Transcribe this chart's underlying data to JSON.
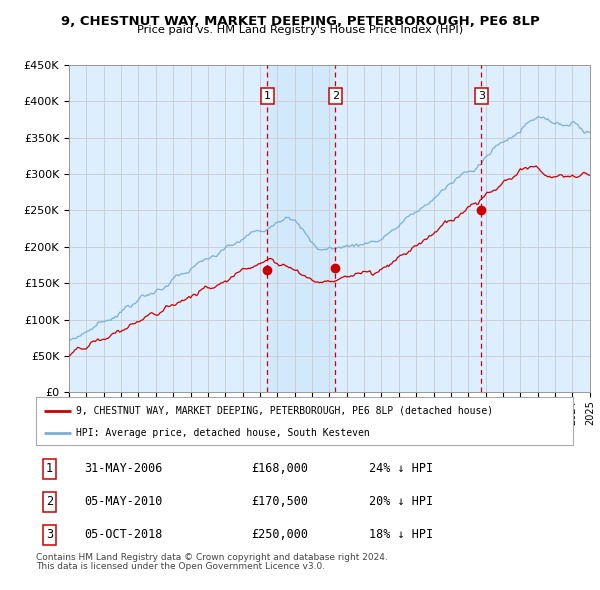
{
  "title": "9, CHESTNUT WAY, MARKET DEEPING, PETERBOROUGH, PE6 8LP",
  "subtitle": "Price paid vs. HM Land Registry's House Price Index (HPI)",
  "ylim": [
    0,
    450000
  ],
  "yticks": [
    0,
    50000,
    100000,
    150000,
    200000,
    250000,
    300000,
    350000,
    400000,
    450000
  ],
  "ytick_labels": [
    "£0",
    "£50K",
    "£100K",
    "£150K",
    "£200K",
    "£250K",
    "£300K",
    "£350K",
    "£400K",
    "£450K"
  ],
  "xstart_year": 1995,
  "xend_year": 2025,
  "hpi_color": "#7bafd4",
  "price_color": "#cc0000",
  "marker_color": "#cc0000",
  "vline_color": "#cc0000",
  "bg_color": "#ddeeff",
  "shade_color": "#cce0f0",
  "grid_color": "#cccccc",
  "transactions": [
    {
      "label": "1",
      "date_num": 2006.42,
      "price": 168000
    },
    {
      "label": "2",
      "date_num": 2010.34,
      "price": 170500
    },
    {
      "label": "3",
      "date_num": 2018.76,
      "price": 250000
    }
  ],
  "legend_line1": "9, CHESTNUT WAY, MARKET DEEPING, PETERBOROUGH, PE6 8LP (detached house)",
  "legend_line2": "HPI: Average price, detached house, South Kesteven",
  "table": [
    {
      "num": "1",
      "date": "31-MAY-2006",
      "price": "£168,000",
      "pct": "24% ↓ HPI"
    },
    {
      "num": "2",
      "date": "05-MAY-2010",
      "price": "£170,500",
      "pct": "20% ↓ HPI"
    },
    {
      "num": "3",
      "date": "05-OCT-2018",
      "price": "£250,000",
      "pct": "18% ↓ HPI"
    }
  ],
  "footer1": "Contains HM Land Registry data © Crown copyright and database right 2024.",
  "footer2": "This data is licensed under the Open Government Licence v3.0."
}
